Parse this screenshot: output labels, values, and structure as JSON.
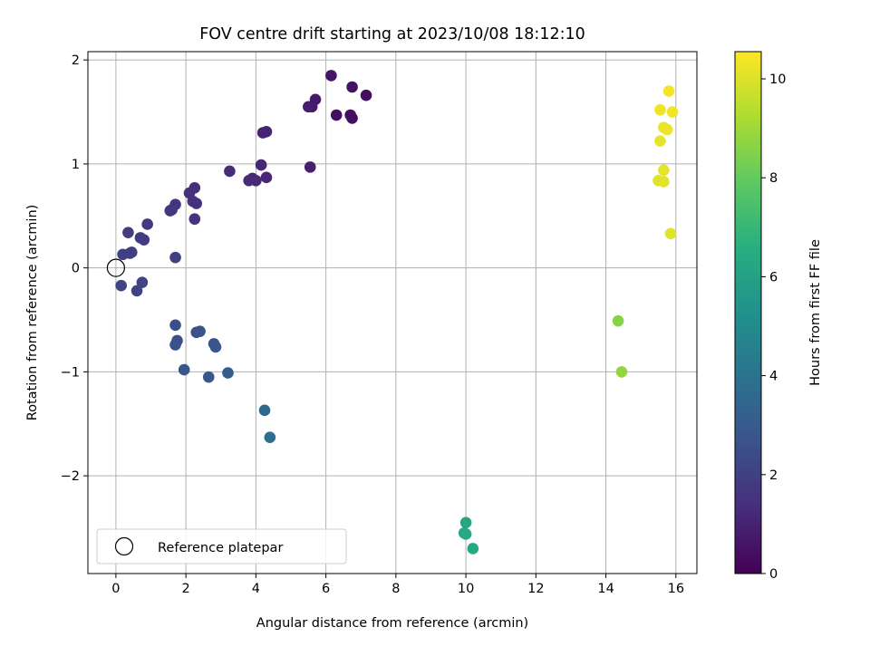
{
  "chart_data": {
    "type": "scatter",
    "title": "FOV centre drift starting at 2023/10/08 18:12:10",
    "xlabel": "Angular distance from reference (arcmin)",
    "ylabel": "Rotation from reference (arcmin)",
    "xlim": [
      -0.8,
      16.6
    ],
    "ylim": [
      -2.94,
      2.08
    ],
    "xticks": [
      0,
      2,
      4,
      6,
      8,
      10,
      12,
      14,
      16
    ],
    "yticks": [
      -2,
      -1,
      0,
      1,
      2
    ],
    "grid": true,
    "colormap": "viridis",
    "colorbar": {
      "label": "Hours from first FF file",
      "min": 0,
      "max": 10.55,
      "ticks": [
        0,
        2,
        4,
        6,
        8,
        10
      ]
    },
    "reference": {
      "x": 0,
      "y": 0,
      "label": "Reference platepar"
    },
    "legend": {
      "position": "lower-left",
      "entries": [
        "Reference platepar"
      ]
    },
    "points": [
      {
        "x": 6.75,
        "y": 1.44,
        "t": 0.35
      },
      {
        "x": 6.7,
        "y": 1.47,
        "t": 0.4
      },
      {
        "x": 6.3,
        "y": 1.47,
        "t": 0.45
      },
      {
        "x": 7.15,
        "y": 1.66,
        "t": 0.4
      },
      {
        "x": 6.75,
        "y": 1.74,
        "t": 0.55
      },
      {
        "x": 6.15,
        "y": 1.85,
        "t": 0.6
      },
      {
        "x": 5.7,
        "y": 1.62,
        "t": 0.7
      },
      {
        "x": 5.6,
        "y": 1.55,
        "t": 0.75
      },
      {
        "x": 5.5,
        "y": 1.55,
        "t": 0.8
      },
      {
        "x": 5.55,
        "y": 0.97,
        "t": 0.9
      },
      {
        "x": 4.2,
        "y": 1.3,
        "t": 1.0
      },
      {
        "x": 4.3,
        "y": 1.31,
        "t": 1.05
      },
      {
        "x": 4.15,
        "y": 0.99,
        "t": 1.1
      },
      {
        "x": 4.3,
        "y": 0.87,
        "t": 1.15
      },
      {
        "x": 3.9,
        "y": 0.86,
        "t": 1.2
      },
      {
        "x": 4.0,
        "y": 0.84,
        "t": 1.2
      },
      {
        "x": 3.8,
        "y": 0.84,
        "t": 1.25
      },
      {
        "x": 3.25,
        "y": 0.93,
        "t": 1.3
      },
      {
        "x": 2.25,
        "y": 0.77,
        "t": 1.4
      },
      {
        "x": 2.1,
        "y": 0.72,
        "t": 1.45
      },
      {
        "x": 2.2,
        "y": 0.64,
        "t": 1.5
      },
      {
        "x": 2.3,
        "y": 0.62,
        "t": 1.5
      },
      {
        "x": 2.25,
        "y": 0.47,
        "t": 1.55
      },
      {
        "x": 1.7,
        "y": 0.61,
        "t": 1.6
      },
      {
        "x": 1.6,
        "y": 0.56,
        "t": 1.65
      },
      {
        "x": 1.55,
        "y": 0.55,
        "t": 1.65
      },
      {
        "x": 0.9,
        "y": 0.42,
        "t": 1.75
      },
      {
        "x": 0.7,
        "y": 0.29,
        "t": 1.8
      },
      {
        "x": 0.8,
        "y": 0.27,
        "t": 1.8
      },
      {
        "x": 0.35,
        "y": 0.34,
        "t": 1.85
      },
      {
        "x": 0.45,
        "y": 0.15,
        "t": 1.9
      },
      {
        "x": 0.4,
        "y": 0.14,
        "t": 1.9
      },
      {
        "x": 0.2,
        "y": 0.13,
        "t": 1.95
      },
      {
        "x": 1.7,
        "y": 0.1,
        "t": 2.0
      },
      {
        "x": 0.15,
        "y": -0.17,
        "t": 2.1
      },
      {
        "x": 0.75,
        "y": -0.14,
        "t": 2.1
      },
      {
        "x": 0.6,
        "y": -0.22,
        "t": 2.15
      },
      {
        "x": 1.7,
        "y": -0.55,
        "t": 2.5
      },
      {
        "x": 1.75,
        "y": -0.7,
        "t": 2.55
      },
      {
        "x": 1.7,
        "y": -0.74,
        "t": 2.6
      },
      {
        "x": 2.3,
        "y": -0.62,
        "t": 2.6
      },
      {
        "x": 2.4,
        "y": -0.61,
        "t": 2.65
      },
      {
        "x": 2.8,
        "y": -0.73,
        "t": 2.7
      },
      {
        "x": 2.85,
        "y": -0.76,
        "t": 2.75
      },
      {
        "x": 1.95,
        "y": -0.98,
        "t": 2.8
      },
      {
        "x": 2.65,
        "y": -1.05,
        "t": 2.9
      },
      {
        "x": 3.2,
        "y": -1.01,
        "t": 2.95
      },
      {
        "x": 4.25,
        "y": -1.37,
        "t": 3.6
      },
      {
        "x": 4.4,
        "y": -1.63,
        "t": 3.8
      },
      {
        "x": 10.0,
        "y": -2.45,
        "t": 6.2
      },
      {
        "x": 9.95,
        "y": -2.55,
        "t": 6.3
      },
      {
        "x": 10.0,
        "y": -2.56,
        "t": 6.35
      },
      {
        "x": 10.2,
        "y": -2.7,
        "t": 6.4
      },
      {
        "x": 14.35,
        "y": -0.51,
        "t": 8.6
      },
      {
        "x": 14.45,
        "y": -1.0,
        "t": 8.8
      },
      {
        "x": 15.85,
        "y": 0.33,
        "t": 10.05
      },
      {
        "x": 15.5,
        "y": 0.84,
        "t": 10.1
      },
      {
        "x": 15.65,
        "y": 0.83,
        "t": 10.12
      },
      {
        "x": 15.65,
        "y": 0.94,
        "t": 10.15
      },
      {
        "x": 15.55,
        "y": 1.22,
        "t": 10.2
      },
      {
        "x": 15.65,
        "y": 1.35,
        "t": 10.25
      },
      {
        "x": 15.75,
        "y": 1.33,
        "t": 10.28
      },
      {
        "x": 15.55,
        "y": 1.52,
        "t": 10.3
      },
      {
        "x": 15.9,
        "y": 1.5,
        "t": 10.35
      },
      {
        "x": 15.8,
        "y": 1.7,
        "t": 10.4
      }
    ]
  }
}
